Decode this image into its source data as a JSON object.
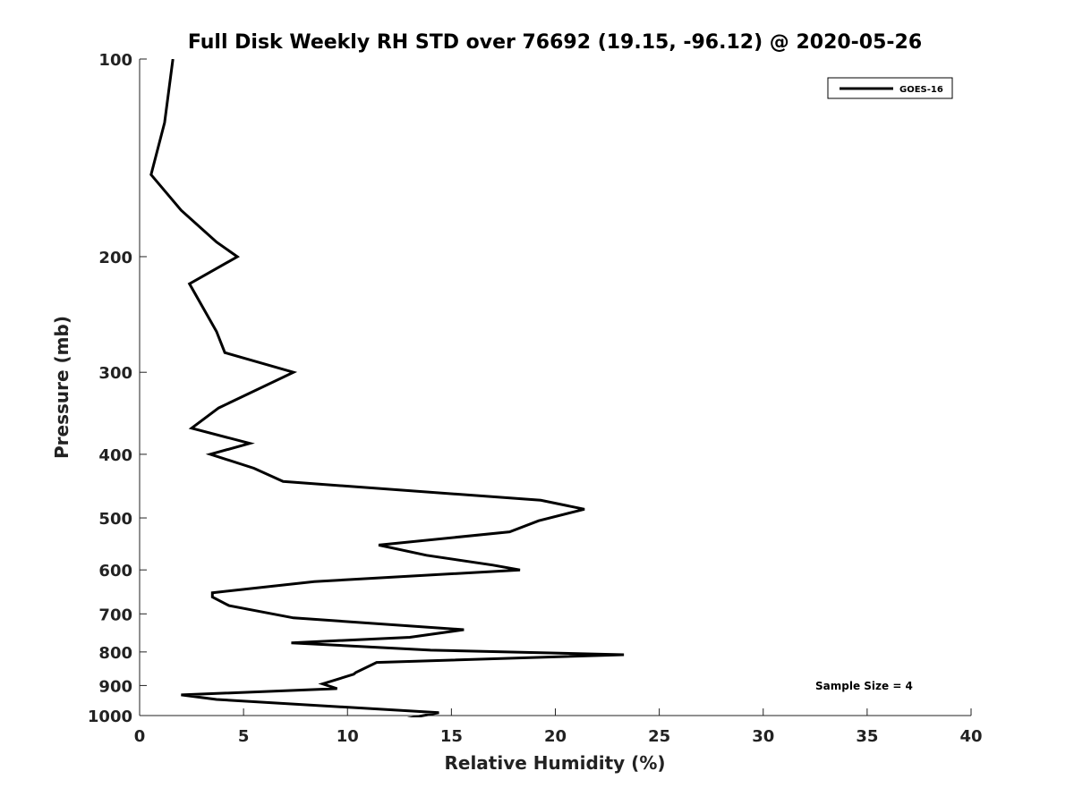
{
  "chart_data": {
    "type": "line",
    "title": "Full Disk Weekly RH STD over 76692 (19.15, -96.12) @ 2020-05-26",
    "xlabel": "Relative Humidity (%)",
    "ylabel": "Pressure (mb)",
    "xlim": [
      0,
      40
    ],
    "ylim": [
      100,
      1000
    ],
    "y_scale": "log",
    "y_inverted": true,
    "x_ticks": [
      "0",
      "5",
      "10",
      "15",
      "20",
      "25",
      "30",
      "35",
      "40"
    ],
    "y_ticks": [
      "100",
      "200",
      "300",
      "400",
      "500",
      "600",
      "700",
      "800",
      "900",
      "1000"
    ],
    "grid": false,
    "legend_position": "top-right",
    "annotation": "Sample Size = 4",
    "series": [
      {
        "name": "GOES-16",
        "color": "#000000",
        "x": [
          1.6,
          1.2,
          0.55,
          2.0,
          3.7,
          4.7,
          2.4,
          3.7,
          4.1,
          7.4,
          3.8,
          2.5,
          5.3,
          3.4,
          5.5,
          6.9,
          19.3,
          21.4,
          19.2,
          17.8,
          11.5,
          13.8,
          17.0,
          18.3,
          8.4,
          3.5,
          3.5,
          4.3,
          7.4,
          15.6,
          13.0,
          7.3,
          14.0,
          23.3,
          11.4,
          10.4,
          10.3,
          8.8,
          9.5,
          2.0,
          3.7,
          14.4,
          12.9
        ],
        "y": [
          100,
          125,
          150,
          170,
          190,
          200,
          220,
          260,
          280,
          300,
          340,
          365,
          385,
          400,
          420,
          440,
          470,
          485,
          505,
          525,
          550,
          570,
          590,
          600,
          625,
          650,
          660,
          680,
          710,
          740,
          760,
          775,
          795,
          808,
          830,
          860,
          865,
          895,
          910,
          930,
          945,
          990,
          1010
        ]
      }
    ]
  }
}
